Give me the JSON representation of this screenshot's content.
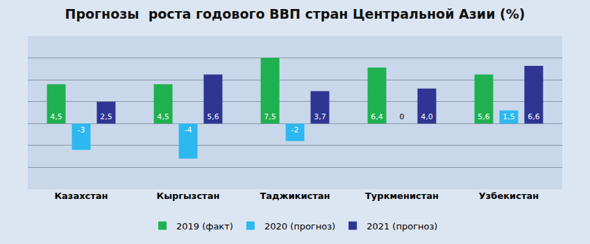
{
  "chart_data": {
    "type": "bar",
    "title": "Прогнозы  роста годового ВВП стран Центральной Азии (%)",
    "categories": [
      "Казахстан",
      "Кыргызстан",
      "Таджикистан",
      "Туркменистан",
      "Узбекистан"
    ],
    "series": [
      {
        "name": "2019 (факт)",
        "color": "#1fb14f",
        "values": [
          4.5,
          4.5,
          7.5,
          6.4,
          5.6
        ],
        "value_labels": [
          "4,5",
          "4,5",
          "7,5",
          "6,4",
          "5,6"
        ]
      },
      {
        "name": "2020 (прогноз)",
        "color": "#2db8ef",
        "values": [
          -3,
          -4,
          -2,
          0,
          1.5
        ],
        "value_labels": [
          "-3",
          "-4",
          "-2",
          "0",
          "1,5"
        ]
      },
      {
        "name": "2021 (прогноз)",
        "color": "#2e3592",
        "values": [
          2.5,
          5.6,
          3.7,
          4.0,
          6.6
        ],
        "value_labels": [
          "2,5",
          "5,6",
          "3,7",
          "4,0",
          "6,6"
        ]
      }
    ],
    "ylim": [
      -7.5,
      10
    ],
    "yticks": [
      -7.5,
      -5,
      -2.5,
      0,
      2.5,
      5,
      7.5,
      10
    ],
    "grid": true,
    "legend": "bottom",
    "data_labels": true,
    "tick_labels": "x"
  }
}
